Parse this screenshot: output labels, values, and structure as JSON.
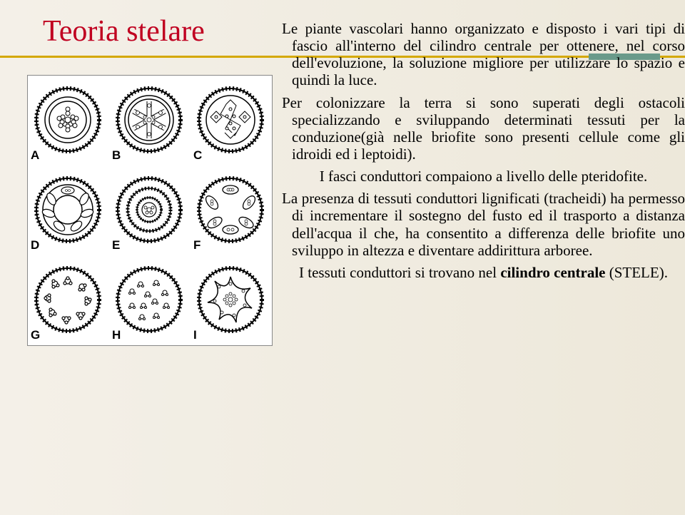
{
  "title": "Teoria stelare",
  "figure": {
    "labels": [
      "A",
      "B",
      "C",
      "D",
      "E",
      "F",
      "G",
      "H",
      "I"
    ]
  },
  "paragraphs": [
    {
      "text": "Le piante vascolari hanno organizzato e disposto i vari tipi di fascio all'interno del cilindro centrale per ottenere, nel corso dell'evoluzione, la soluzione migliore per utilizzare lo spazio e quindi la luce."
    },
    {
      "text": "Per colonizzare la terra si sono superati degli ostacoli specializzando e sviluppando determinati tessuti per la conduzione(già nelle briofite sono presenti cellule come gli idroidi ed i leptoidi)."
    },
    {
      "text": "I fasci conduttori compaiono a livello delle pteridofite."
    },
    {
      "text": "La presenza di tessuti conduttori lignificati (tracheidi) ha permesso di incrementare il sostegno del fusto ed il trasporto a distanza dell'acqua il che, ha consentito a differenza delle briofite uno sviluppo in altezza e diventare addirittura arboree."
    },
    {
      "html": "I tessuti conduttori si trovano nel <b>cilindro centrale</b> (STELE)."
    }
  ],
  "colors": {
    "title": "#c00020",
    "underline": "#d4a800",
    "accent": "#6a9a8a",
    "text": "#000000",
    "bg": "#f4f0e8"
  }
}
